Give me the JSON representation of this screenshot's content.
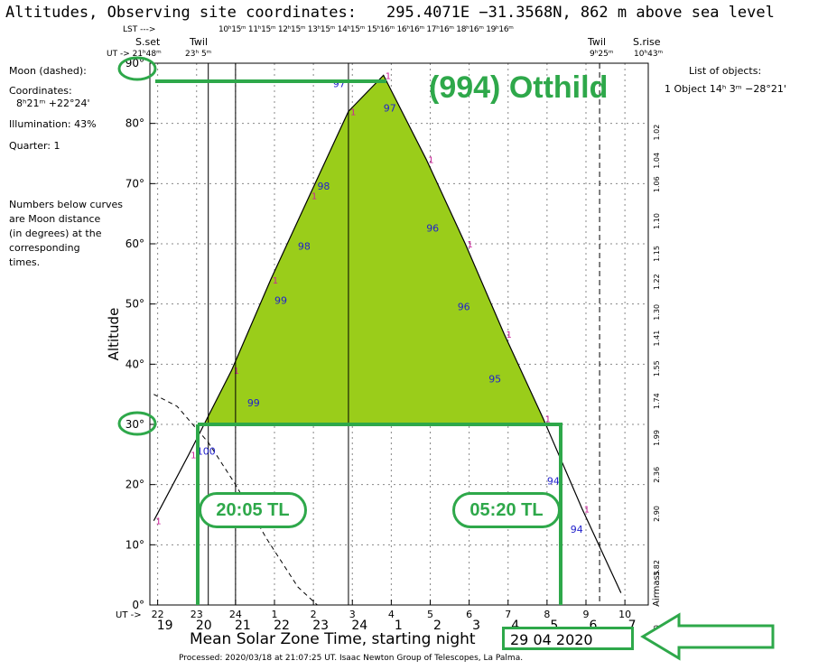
{
  "header": {
    "title": "Altitudes, Observing site coordinates:",
    "coords": "295.4071E −31.3568N,  862 m above sea level"
  },
  "left_panel": {
    "moon_label": "Moon (dashed):",
    "coords_label": "Coordinates:",
    "coords_value": "8ʰ21ᵐ  +22°24'",
    "illumination": "Illumination:  43%",
    "quarter": "Quarter: 1",
    "note_lines": [
      "Numbers below curves",
      "are Moon distance",
      "(in degrees) at the",
      "corresponding",
      "times."
    ]
  },
  "right_panel": {
    "list_title": "List of objects:",
    "entry": "1 Object 14ʰ 3ᵐ −28°21'"
  },
  "top_labels": {
    "lst_arrow": "LST --->",
    "lst_ticks": "10ʰ15ᵐ 11ʰ15ᵐ 12ʰ15ᵐ 13ʰ15ᵐ 14ʰ15ᵐ 15ʰ16ᵐ 16ʰ16ᵐ 17ʰ16ᵐ 18ʰ16ᵐ 19ʰ16ᵐ",
    "sset": "S.set",
    "ut_sset": "UT -> 21ʰ48ᵐ",
    "twil_left": "Twil",
    "twil_left_time": "23ʰ 5ᵐ",
    "twil_right": "Twil",
    "twil_right_time": "9ʰ25ᵐ",
    "srise": "S.rise",
    "srise_time": "10ʰ43ᵐ"
  },
  "chart_data": {
    "type": "line",
    "ylabel": "Altitude",
    "ylim": [
      0,
      90
    ],
    "yticks": [
      "0°",
      "10°",
      "20°",
      "30°",
      "40°",
      "50°",
      "60°",
      "70°",
      "80°",
      "90°"
    ],
    "ut_ticks": [
      "22",
      "23",
      "24",
      "1",
      "2",
      "3",
      "4",
      "5",
      "6",
      "7",
      "8",
      "9",
      "10"
    ],
    "ut_prefix": "UT ->",
    "local_ticks": [
      "19",
      "20",
      "21",
      "22",
      "23",
      "24",
      "1",
      "2",
      "3",
      "4",
      "5",
      "6",
      "7"
    ],
    "airmass_ticks": [
      "1.02",
      "1.04",
      "1.06",
      "1.10",
      "1.15",
      "1.22",
      "1.30",
      "1.41",
      "1.55",
      "1.74",
      "1.99",
      "2.36",
      "2.90",
      "3.82",
      "5.60"
    ],
    "airmass_label": "Airmass",
    "series": [
      {
        "name": "1",
        "x": [
          21.9,
          22.8,
          23.9,
          24.9,
          25.9,
          26.9,
          27.8,
          28.9,
          29.9,
          30.9,
          31.9,
          32.9,
          33.9
        ],
        "y": [
          14,
          25,
          39,
          54,
          68,
          82,
          88,
          74,
          60,
          45,
          31,
          16,
          2
        ]
      },
      {
        "name": "Moon",
        "x": [
          21.9,
          22.5,
          23.3,
          24.0,
          24.8,
          25.6,
          26.1
        ],
        "y": [
          35,
          33,
          27,
          20,
          11,
          3,
          0
        ]
      }
    ],
    "moon_distance_labels": [
      {
        "x": 23.0,
        "y": 25,
        "text": "100"
      },
      {
        "x": 24.3,
        "y": 33,
        "text": "99"
      },
      {
        "x": 25.0,
        "y": 50,
        "text": "99"
      },
      {
        "x": 25.6,
        "y": 59,
        "text": "98"
      },
      {
        "x": 26.1,
        "y": 69,
        "text": "98"
      },
      {
        "x": 26.5,
        "y": 86,
        "text": "97"
      },
      {
        "x": 27.8,
        "y": 82,
        "text": "97"
      },
      {
        "x": 28.9,
        "y": 62,
        "text": "96"
      },
      {
        "x": 29.7,
        "y": 49,
        "text": "96"
      },
      {
        "x": 30.5,
        "y": 37,
        "text": "95"
      },
      {
        "x": 32.0,
        "y": 20,
        "text": "94"
      },
      {
        "x": 32.6,
        "y": 12,
        "text": "94"
      }
    ]
  },
  "annotations": {
    "object_name": "(994) Otthild",
    "start_time": "20:05 TL",
    "end_time": "05:20 TL"
  },
  "footer": {
    "title": "Mean Solar Zone Time, starting night",
    "date": "29 04 2020",
    "processed": "Processed: 2020/03/18 at 21:07:25 UT. Isaac  Newton Group of Telescopes, La Palma."
  },
  "colors": {
    "accent": "#2ea84a",
    "fill": "#9acd1a",
    "label_blue": "#2222cc",
    "marker_pink": "#cc2299"
  }
}
